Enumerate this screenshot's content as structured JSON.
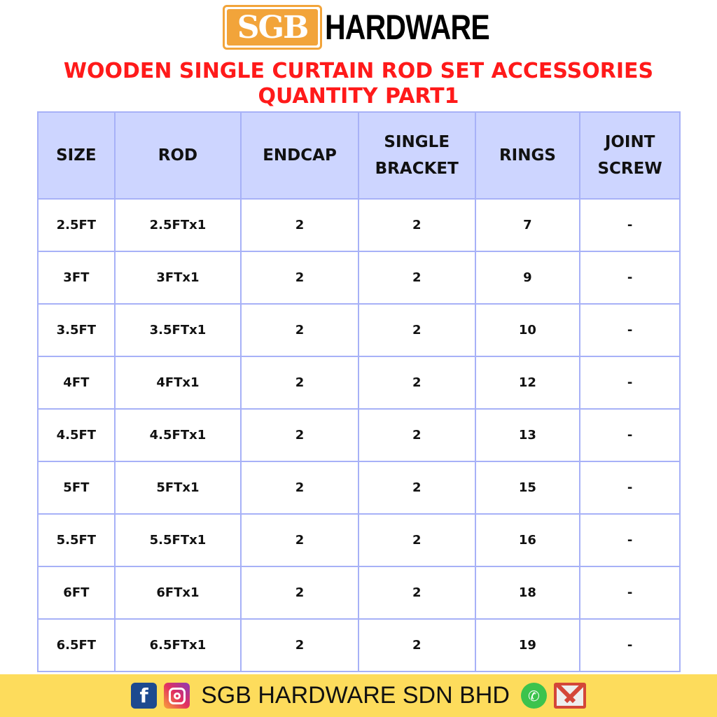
{
  "logo": {
    "brand": "SGB",
    "text": "HARDWARE",
    "color": "#f2a43a"
  },
  "title": {
    "line1": "WOODEN SINGLE CURTAIN ROD SET ACCESSORIES",
    "line2": "QUANTITY PART1",
    "color": "#ff1a1a"
  },
  "table": {
    "headers": [
      "SIZE",
      "ROD",
      "ENDCAP",
      "SINGLE\nBRACKET",
      "RINGS",
      "JOINT\nSCREW"
    ],
    "rows": [
      [
        "2.5FT",
        "2.5FTx1",
        "2",
        "2",
        "7",
        "-"
      ],
      [
        "3FT",
        "3FTx1",
        "2",
        "2",
        "9",
        "-"
      ],
      [
        "3.5FT",
        "3.5FTx1",
        "2",
        "2",
        "10",
        "-"
      ],
      [
        "4FT",
        "4FTx1",
        "2",
        "2",
        "12",
        "-"
      ],
      [
        "4.5FT",
        "4.5FTx1",
        "2",
        "2",
        "13",
        "-"
      ],
      [
        "5FT",
        "5FTx1",
        "2",
        "2",
        "15",
        "-"
      ],
      [
        "5.5FT",
        "5.5FTx1",
        "2",
        "2",
        "16",
        "-"
      ],
      [
        "6FT",
        "6FTx1",
        "2",
        "2",
        "18",
        "-"
      ],
      [
        "6.5FT",
        "6.5FTx1",
        "2",
        "2",
        "19",
        "-"
      ]
    ]
  },
  "footer": {
    "text": "SGB HARDWARE SDN BHD",
    "icons": [
      "facebook-icon",
      "instagram-icon",
      "whatsapp-icon",
      "gmail-icon"
    ],
    "background": "#fddc5c"
  }
}
